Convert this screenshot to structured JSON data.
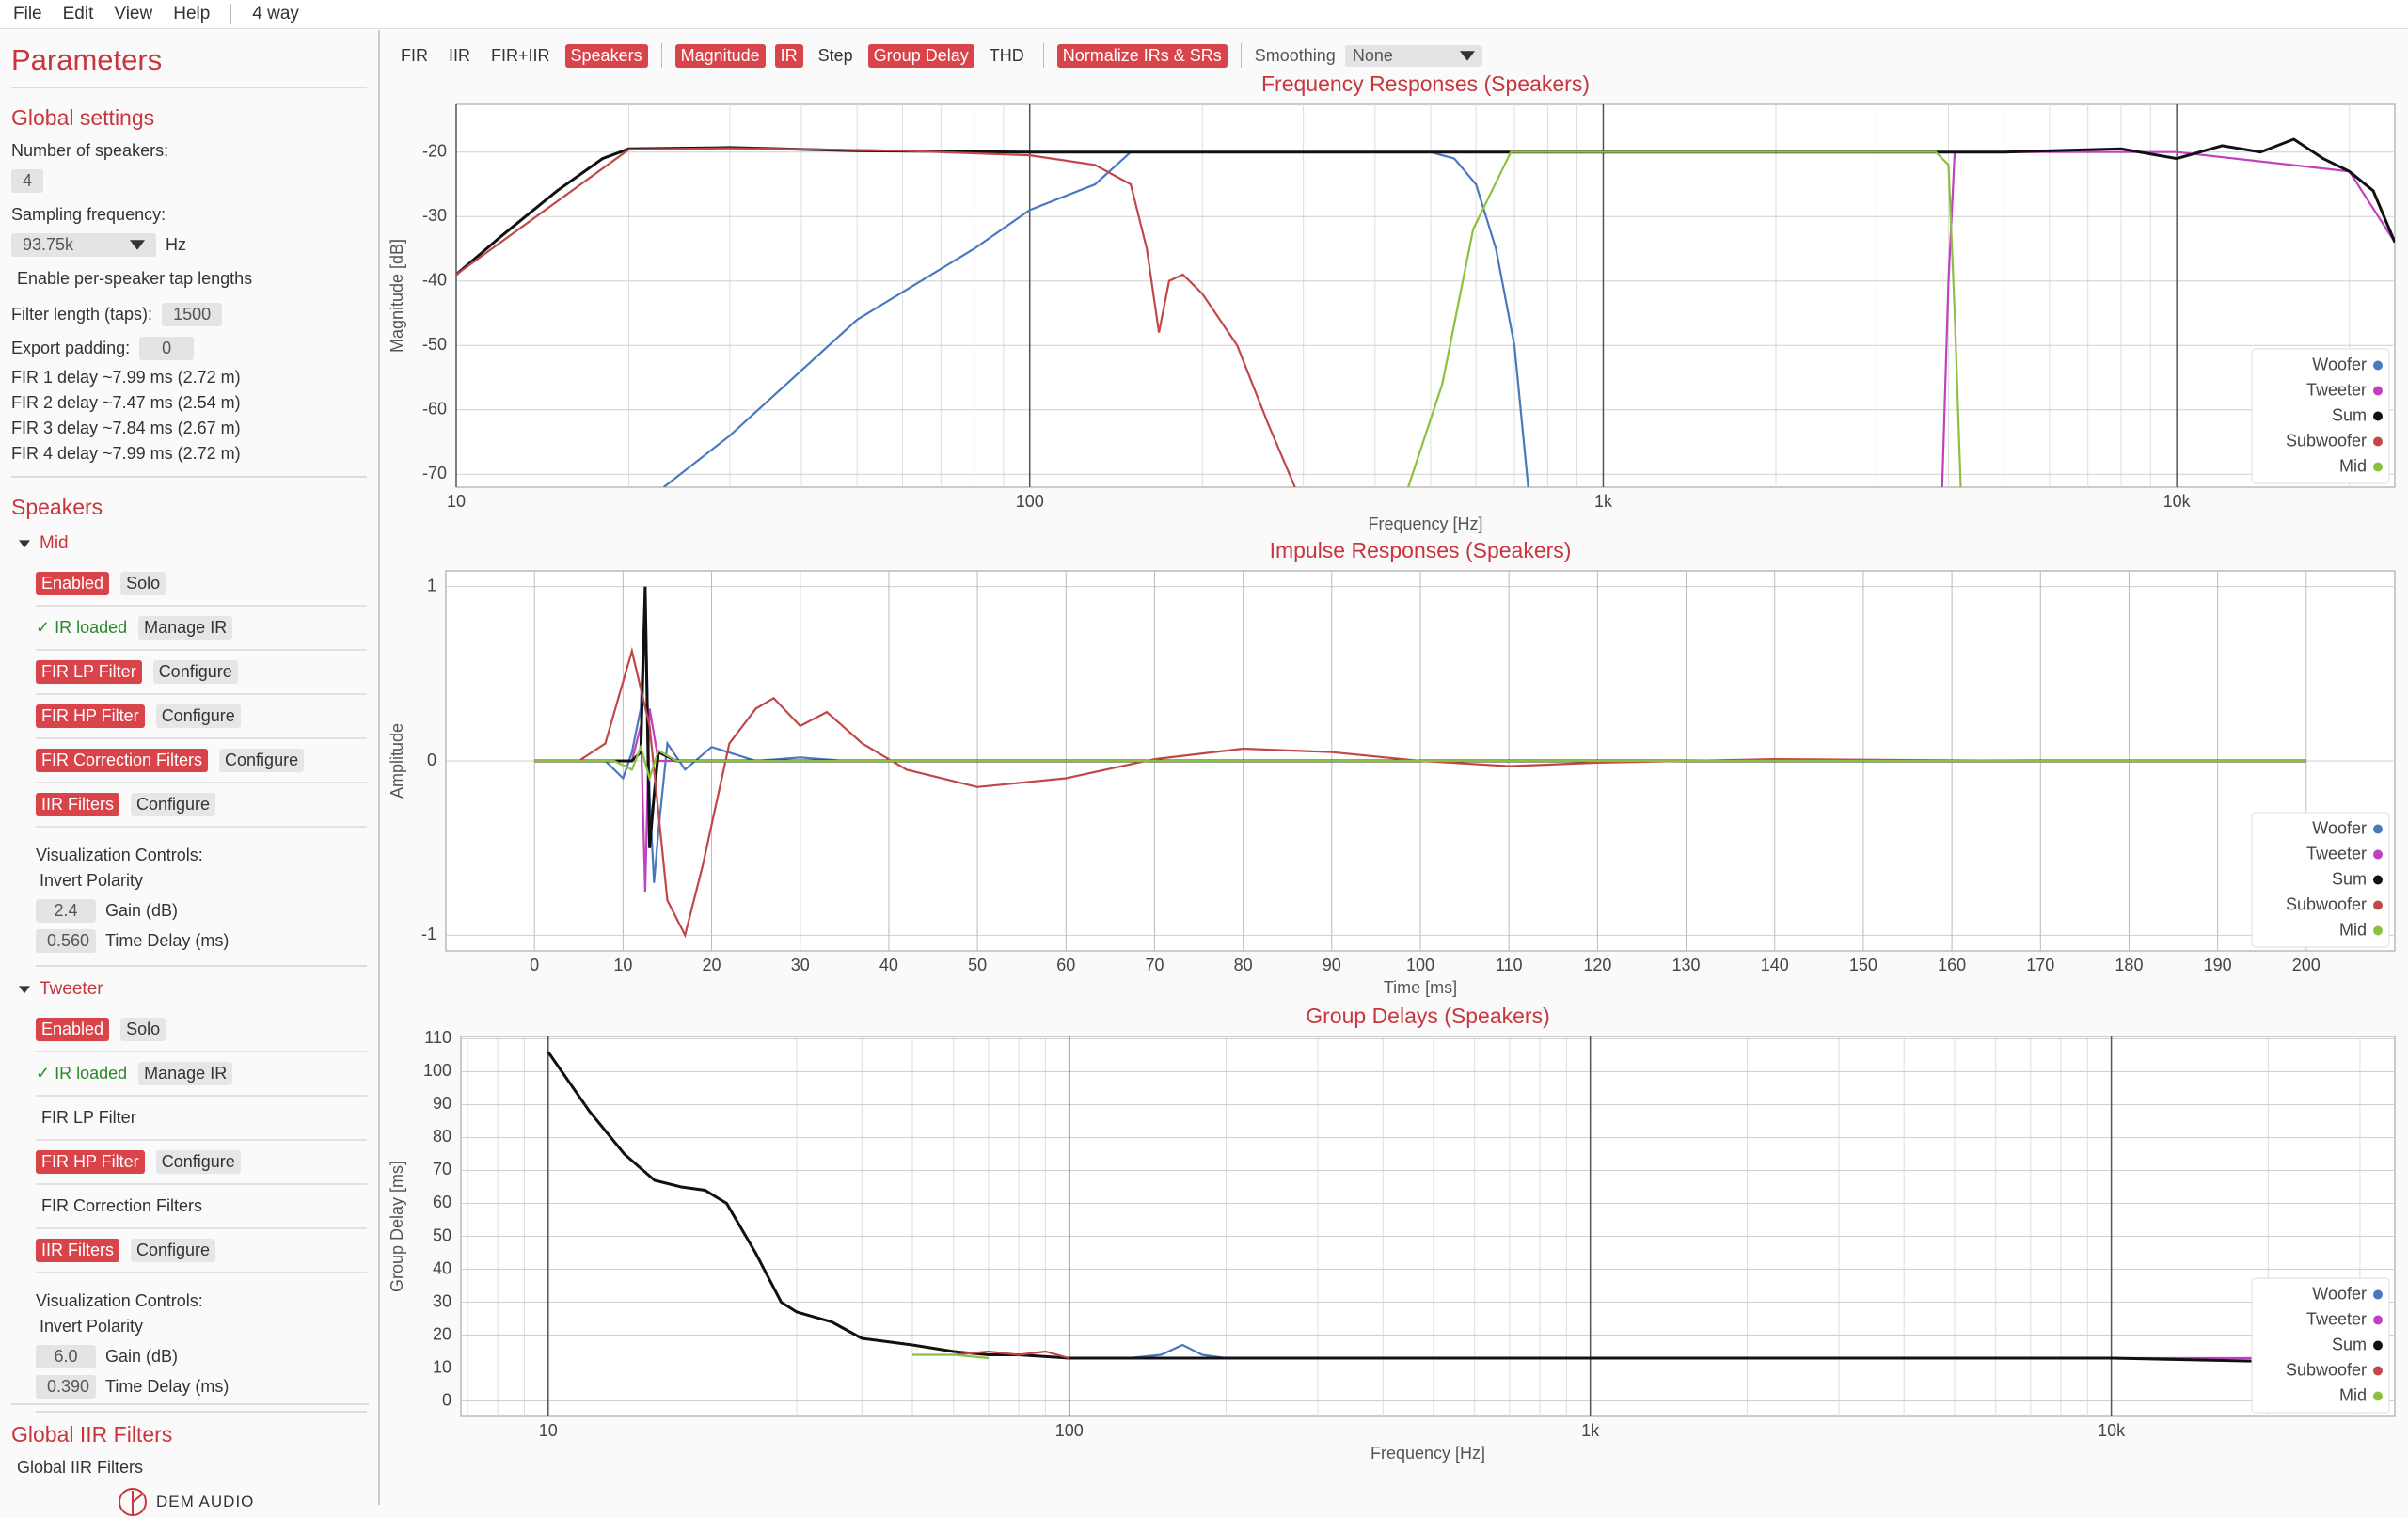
{
  "menu": {
    "items": [
      "File",
      "Edit",
      "View",
      "Help"
    ],
    "project": "4 way"
  },
  "toolbar": {
    "groups": [
      [
        {
          "label": "FIR",
          "active": false
        },
        {
          "label": "IIR",
          "active": false
        },
        {
          "label": "FIR+IIR",
          "active": false
        },
        {
          "label": "Speakers",
          "active": true
        }
      ],
      [
        {
          "label": "Magnitude",
          "active": true
        },
        {
          "label": "IR",
          "active": true
        },
        {
          "label": "Step",
          "active": false
        },
        {
          "label": "Group Delay",
          "active": true
        },
        {
          "label": "THD",
          "active": false
        }
      ],
      [
        {
          "label": "Normalize IRs & SRs",
          "active": true
        }
      ]
    ],
    "smoothing_label": "Smoothing",
    "smoothing": "None"
  },
  "sidebar": {
    "title": "Parameters",
    "global": {
      "heading": "Global settings",
      "num_speakers_label": "Number of speakers:",
      "num_speakers": "4",
      "fs_label": "Sampling frequency:",
      "fs": "93.75k",
      "fs_unit": "Hz",
      "tap_toggle": "Enable per-speaker tap lengths",
      "filter_length_label": "Filter length (taps):",
      "filter_length": "1500",
      "padding_label": "Export padding:",
      "padding": "0",
      "delays": [
        "FIR 1 delay ~7.99 ms (2.72 m)",
        "FIR 2 delay ~7.47 ms (2.54 m)",
        "FIR 3 delay ~7.84 ms (2.67 m)",
        "FIR 4 delay ~7.99 ms (2.72 m)"
      ]
    },
    "speakers_heading": "Speakers",
    "speakers": [
      {
        "name": "Mid",
        "enabled": "Enabled",
        "solo": "Solo",
        "ir_status": "✓ IR loaded",
        "manage": "Manage IR",
        "filters": [
          {
            "label": "FIR LP Filter",
            "active": true,
            "configure": "Configure"
          },
          {
            "label": "FIR HP Filter",
            "active": true,
            "configure": "Configure"
          },
          {
            "label": "FIR Correction Filters",
            "active": true,
            "configure": "Configure"
          },
          {
            "label": "IIR Filters",
            "active": true,
            "configure": "Configure"
          }
        ],
        "vis_label": "Visualization Controls:",
        "invert": "Invert Polarity",
        "gain": "2.4",
        "gain_label": "Gain (dB)",
        "delay": "0.560",
        "delay_label": "Time Delay (ms)"
      },
      {
        "name": "Tweeter",
        "enabled": "Enabled",
        "solo": "Solo",
        "ir_status": "✓ IR loaded",
        "manage": "Manage IR",
        "filters": [
          {
            "label": "FIR LP Filter",
            "active": false
          },
          {
            "label": "FIR HP Filter",
            "active": true,
            "configure": "Configure"
          },
          {
            "label": "FIR Correction Filters",
            "active": false
          },
          {
            "label": "IIR Filters",
            "active": true,
            "configure": "Configure"
          }
        ],
        "vis_label": "Visualization Controls:",
        "invert": "Invert Polarity",
        "gain": "6.0",
        "gain_label": "Gain (dB)",
        "delay": "0.390",
        "delay_label": "Time Delay (ms)"
      }
    ],
    "global_iir_heading": "Global IIR Filters",
    "global_iir_item": "Global IIR Filters",
    "brand": "DEM AUDIO"
  },
  "chart_data": [
    {
      "type": "line",
      "title": "Frequency Responses (Speakers)",
      "xlabel": "Frequency [Hz]",
      "ylabel": "Magnitude [dB]",
      "xscale": "log",
      "xlim": [
        10,
        24000
      ],
      "ylim": [
        -72,
        -12.6
      ],
      "xticks": [
        10,
        100,
        {
          "value": 1000,
          "label": "1k"
        },
        {
          "value": 10000,
          "label": "10k"
        }
      ],
      "yticks": [
        -70,
        -60,
        -50,
        -40,
        -30,
        -20
      ],
      "grid": true,
      "legend": "lower right",
      "series": [
        {
          "name": "Woofer",
          "color": "#4a78c0",
          "x": [
            23,
            30,
            50,
            80,
            100,
            130,
            150,
            200,
            300,
            500,
            550,
            600,
            650,
            700,
            740
          ],
          "values": [
            -72,
            -64,
            -46,
            -35,
            -29,
            -25,
            -20,
            -20,
            -20,
            -20,
            -21,
            -25,
            -35,
            -50,
            -72
          ]
        },
        {
          "name": "Tweeter",
          "color": "#c040c0",
          "x": [
            3900,
            4000,
            4100,
            6000,
            10000,
            20000,
            24000
          ],
          "values": [
            -72,
            -40,
            -20,
            -20,
            -20,
            -23,
            -34
          ]
        },
        {
          "name": "Sum",
          "color": "#111111",
          "x": [
            10,
            12,
            15,
            18,
            20,
            30,
            50,
            100,
            200,
            500,
            1000,
            2000,
            5000,
            8000,
            10000,
            12000,
            14000,
            16000,
            18000,
            20000,
            22000,
            24000
          ],
          "values": [
            -39,
            -33,
            -26,
            -21,
            -19.5,
            -19.3,
            -19.8,
            -20,
            -20,
            -20,
            -20,
            -20,
            -20,
            -19.5,
            -21,
            -19,
            -20,
            -18,
            -21,
            -23,
            -26,
            -34
          ]
        },
        {
          "name": "Subwoofer",
          "color": "#c04848",
          "x": [
            10,
            20,
            30,
            60,
            100,
            130,
            150,
            160,
            168,
            175,
            185,
            200,
            230,
            260,
            290
          ],
          "values": [
            -39,
            -19.6,
            -19.4,
            -19.8,
            -20.5,
            -22,
            -25,
            -35,
            -48,
            -40,
            -39,
            -42,
            -50,
            -62,
            -72
          ]
        },
        {
          "name": "Mid",
          "color": "#8cc040",
          "x": [
            457,
            524,
            593,
            690,
            1000,
            2000,
            3800,
            4000,
            4100,
            4200
          ],
          "values": [
            -72,
            -56,
            -32,
            -20,
            -20,
            -20,
            -20,
            -22,
            -45,
            -72
          ]
        }
      ]
    },
    {
      "type": "line",
      "title": "Impulse Responses (Speakers)",
      "xlabel": "Time [ms]",
      "ylabel": "Amplitude",
      "xscale": "linear",
      "xlim": [
        -10,
        210
      ],
      "ylim": [
        -1.09,
        1.09
      ],
      "xticks": [
        0,
        10,
        20,
        30,
        40,
        50,
        60,
        70,
        80,
        90,
        100,
        110,
        120,
        130,
        140,
        150,
        160,
        170,
        180,
        190,
        200
      ],
      "yticks": [
        -1,
        0,
        1
      ],
      "grid": true,
      "legend": "lower right",
      "series": [
        {
          "name": "Woofer",
          "color": "#4a78c0",
          "x": [
            0,
            8,
            10,
            11,
            12,
            12.5,
            13,
            13.5,
            14,
            15,
            17,
            20,
            25,
            30,
            35,
            40,
            200
          ],
          "values": [
            0,
            0,
            -0.1,
            0.05,
            0.3,
            1,
            -0.2,
            -0.7,
            -0.4,
            0.1,
            -0.05,
            0.08,
            0,
            0.02,
            0,
            0,
            0
          ]
        },
        {
          "name": "Tweeter",
          "color": "#c040c0",
          "x": [
            0,
            11,
            12,
            12.5,
            13,
            14,
            20,
            200
          ],
          "values": [
            0,
            0,
            0.2,
            -0.75,
            0.3,
            0,
            0,
            0
          ]
        },
        {
          "name": "Sum",
          "color": "#111111",
          "x": [
            0,
            11,
            12,
            12.5,
            13,
            13.5,
            14,
            16,
            200
          ],
          "values": [
            0,
            0,
            0.05,
            1,
            -0.5,
            -0.2,
            0.05,
            0,
            0
          ]
        },
        {
          "name": "Subwoofer",
          "color": "#c04848",
          "x": [
            0,
            5,
            8,
            11,
            13,
            15,
            17,
            19,
            22,
            25,
            27,
            30,
            33,
            37,
            42,
            50,
            60,
            70,
            80,
            90,
            100,
            110,
            120,
            140,
            170,
            200
          ],
          "values": [
            0,
            0,
            0.1,
            0.63,
            0.2,
            -0.8,
            -1,
            -0.6,
            0.1,
            0.3,
            0.36,
            0.2,
            0.28,
            0.1,
            -0.05,
            -0.15,
            -0.1,
            0.01,
            0.07,
            0.05,
            0,
            -0.03,
            -0.01,
            0.01,
            0,
            0
          ]
        },
        {
          "name": "Mid",
          "color": "#8cc040",
          "x": [
            0,
            9,
            11,
            12,
            13,
            14,
            16,
            20,
            200
          ],
          "values": [
            0,
            0,
            -0.05,
            0.08,
            -0.1,
            0.06,
            0,
            0,
            0
          ]
        }
      ]
    },
    {
      "type": "line",
      "title": "Group Delays (Speakers)",
      "xlabel": "Frequency [Hz]",
      "ylabel": "Group Delay [ms]",
      "xscale": "log",
      "xlim": [
        6.8,
        35000
      ],
      "ylim": [
        -4.7,
        110.7
      ],
      "xticks": [
        10,
        100,
        {
          "value": 1000,
          "label": "1k"
        },
        {
          "value": 10000,
          "label": "10k"
        }
      ],
      "yticks": [
        0,
        10,
        20,
        30,
        40,
        50,
        60,
        70,
        80,
        90,
        100,
        110
      ],
      "grid": true,
      "legend": "lower right",
      "series": [
        {
          "name": "Woofer",
          "color": "#4a78c0",
          "x": [
            80,
            100,
            130,
            150,
            165,
            180,
            200
          ],
          "values": [
            14,
            13,
            13,
            14,
            17,
            14,
            13
          ]
        },
        {
          "name": "Tweeter",
          "color": "#c040c0",
          "x": [
            4000,
            10000,
            20000
          ],
          "values": [
            13,
            13,
            13
          ]
        },
        {
          "name": "Sum",
          "color": "#111111",
          "x": [
            10,
            12,
            14,
            16,
            18,
            20,
            22,
            25,
            28,
            30,
            35,
            40,
            50,
            60,
            70,
            80,
            100,
            150,
            200,
            500,
            1000,
            5000,
            10000,
            20000,
            25000
          ],
          "values": [
            106,
            88,
            75,
            67,
            65,
            64,
            60,
            45,
            30,
            27,
            24,
            19,
            17,
            15,
            14,
            14,
            13,
            13,
            13,
            13,
            13,
            13,
            13,
            12,
            12
          ]
        },
        {
          "name": "Subwoofer",
          "color": "#c04848",
          "x": [
            60,
            70,
            80,
            90,
            100
          ],
          "values": [
            14,
            15,
            14,
            15,
            13
          ]
        },
        {
          "name": "Mid",
          "color": "#8cc040",
          "x": [
            50,
            60,
            70
          ],
          "values": [
            14,
            14,
            13
          ]
        }
      ]
    }
  ]
}
